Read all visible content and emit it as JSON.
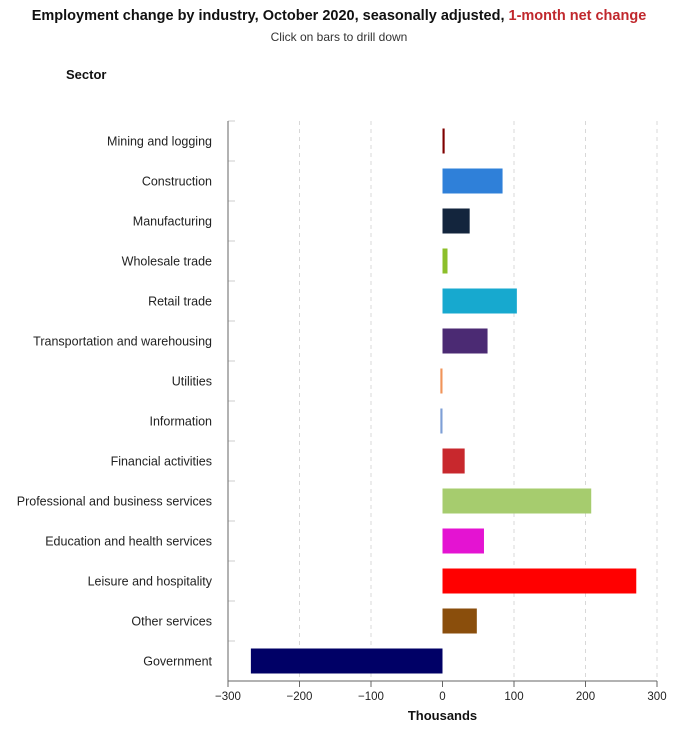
{
  "chart_data": {
    "type": "bar",
    "orientation": "horizontal",
    "title_main": "Employment change by industry, October 2020, seasonally adjusted, ",
    "title_highlight": "1-month net change",
    "subtitle": "Click on bars to drill down",
    "category_axis_title": "Sector",
    "xlabel": "Thousands",
    "xlim": [
      -300,
      300
    ],
    "xticks": [
      -300,
      -200,
      -100,
      0,
      100,
      200,
      300
    ],
    "xtick_labels": [
      "−300",
      "−200",
      "−100",
      "0",
      "100",
      "200",
      "300"
    ],
    "grid": "vertical dashed",
    "categories": [
      "Mining and logging",
      "Construction",
      "Manufacturing",
      "Wholesale trade",
      "Retail trade",
      "Transportation and warehousing",
      "Utilities",
      "Information",
      "Financial activities",
      "Professional and business services",
      "Education and health services",
      "Leisure and hospitality",
      "Other services",
      "Government"
    ],
    "values": [
      3,
      84,
      38,
      7,
      104,
      63,
      -3,
      -3,
      31,
      208,
      58,
      271,
      48,
      -268
    ],
    "colors": [
      "#7f0000",
      "#2f80d9",
      "#13253d",
      "#8cbf2a",
      "#17a9cf",
      "#4b2a73",
      "#f0945a",
      "#7e9fd6",
      "#c8282d",
      "#a6cc6e",
      "#e413d2",
      "#ff0000",
      "#8a4e0c",
      "#000066"
    ]
  },
  "colors": {
    "title_highlight": "#c0282d"
  }
}
